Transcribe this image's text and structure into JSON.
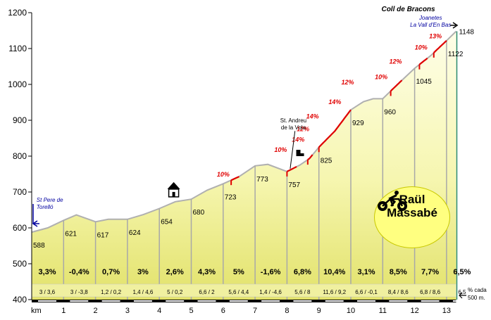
{
  "chart_data": {
    "type": "area",
    "title": "Coll de Bracons",
    "xlabel": "km",
    "ylabel": "",
    "xlim": [
      0,
      13.3
    ],
    "ylim": [
      400,
      1200
    ],
    "x_ticks": [
      "1",
      "2",
      "3",
      "4",
      "5",
      "6",
      "7",
      "8",
      "9",
      "10",
      "11",
      "12",
      "13"
    ],
    "y_ticks": [
      "400",
      "500",
      "600",
      "700",
      "800",
      "900",
      "1000",
      "1100",
      "1200"
    ],
    "profile": [
      {
        "km": 0,
        "alt": 588
      },
      {
        "km": 0.5,
        "alt": 600
      },
      {
        "km": 1,
        "alt": 621
      },
      {
        "km": 1.4,
        "alt": 636
      },
      {
        "km": 2,
        "alt": 617
      },
      {
        "km": 2.4,
        "alt": 624
      },
      {
        "km": 3,
        "alt": 624
      },
      {
        "km": 3.5,
        "alt": 637
      },
      {
        "km": 4,
        "alt": 654
      },
      {
        "km": 4.5,
        "alt": 673
      },
      {
        "km": 5,
        "alt": 680
      },
      {
        "km": 5.5,
        "alt": 705
      },
      {
        "km": 6,
        "alt": 723
      },
      {
        "km": 6.5,
        "alt": 743
      },
      {
        "km": 7,
        "alt": 773
      },
      {
        "km": 7.4,
        "alt": 777
      },
      {
        "km": 8,
        "alt": 757
      },
      {
        "km": 8.4,
        "alt": 775
      },
      {
        "km": 8.7,
        "alt": 793
      },
      {
        "km": 9,
        "alt": 825
      },
      {
        "km": 9.5,
        "alt": 870
      },
      {
        "km": 10,
        "alt": 929
      },
      {
        "km": 10.4,
        "alt": 952
      },
      {
        "km": 10.7,
        "alt": 960
      },
      {
        "km": 11,
        "alt": 960
      },
      {
        "km": 11.5,
        "alt": 1003
      },
      {
        "km": 12,
        "alt": 1045
      },
      {
        "km": 12.5,
        "alt": 1080
      },
      {
        "km": 13,
        "alt": 1122
      },
      {
        "km": 13.3,
        "alt": 1148
      }
    ],
    "point_labels": [
      {
        "km": 0,
        "alt": 588,
        "text": "588"
      },
      {
        "km": 1,
        "alt": 621,
        "text": "621"
      },
      {
        "km": 2,
        "alt": 617,
        "text": "617"
      },
      {
        "km": 3,
        "alt": 624,
        "text": "624"
      },
      {
        "km": 4,
        "alt": 654,
        "text": "654"
      },
      {
        "km": 5,
        "alt": 680,
        "text": "680"
      },
      {
        "km": 6,
        "alt": 723,
        "text": "723"
      },
      {
        "km": 7,
        "alt": 773,
        "text": "773"
      },
      {
        "km": 8,
        "alt": 757,
        "text": "757"
      },
      {
        "km": 9,
        "alt": 825,
        "text": "825"
      },
      {
        "km": 10,
        "alt": 929,
        "text": "929"
      },
      {
        "km": 11,
        "alt": 960,
        "text": "960"
      },
      {
        "km": 12,
        "alt": 1045,
        "text": "1045"
      },
      {
        "km": 13,
        "alt": 1122,
        "text": "1122"
      },
      {
        "km": 13.3,
        "alt": 1148,
        "text": "1148"
      }
    ],
    "segments": [
      {
        "avg": "3,3%",
        "minmax": "3 / 3,6"
      },
      {
        "avg": "-0,4%",
        "minmax": "3 / -3,8"
      },
      {
        "avg": "0,7%",
        "minmax": "1,2 / 0,2"
      },
      {
        "avg": "3%",
        "minmax": "1,4 / 4,6"
      },
      {
        "avg": "2,6%",
        "minmax": "5 / 0,2"
      },
      {
        "avg": "4,3%",
        "minmax": "6,6 / 2"
      },
      {
        "avg": "5%",
        "minmax": "5,6 / 4,4"
      },
      {
        "avg": "-1,6%",
        "minmax": "1,4 / -4,6"
      },
      {
        "avg": "6,8%",
        "minmax": "5,6 / 8"
      },
      {
        "avg": "10,4%",
        "minmax": "11,6 / 9,2"
      },
      {
        "avg": "3,1%",
        "minmax": "6,6 / -0,1"
      },
      {
        "avg": "8,5%",
        "minmax": "8,4 / 8,6"
      },
      {
        "avg": "7,7%",
        "minmax": "6,8 / 8,6"
      },
      {
        "avg": "6,5%",
        "minmax": "6,5"
      }
    ],
    "steep_sections": [
      {
        "from": 6.25,
        "to": 6.5
      },
      {
        "from": 8.0,
        "to": 8.3
      },
      {
        "from": 8.65,
        "to": 8.8
      },
      {
        "from": 9.0,
        "to": 10.0
      },
      {
        "from": 11.25,
        "to": 11.6
      },
      {
        "from": 12.15,
        "to": 12.4
      },
      {
        "from": 12.6,
        "to": 13.0
      }
    ],
    "gradient_labels": [
      {
        "km": 6.2,
        "alt": 743,
        "text": "10%"
      },
      {
        "km": 8.0,
        "alt": 812,
        "text": "10%"
      },
      {
        "km": 8.55,
        "alt": 840,
        "text": "14%"
      },
      {
        "km": 8.7,
        "alt": 870,
        "text": "12%"
      },
      {
        "km": 9.0,
        "alt": 905,
        "text": "14%"
      },
      {
        "km": 9.7,
        "alt": 945,
        "text": "14%"
      },
      {
        "km": 10.1,
        "alt": 1000,
        "text": "12%"
      },
      {
        "km": 11.15,
        "alt": 1015,
        "text": "10%"
      },
      {
        "km": 11.6,
        "alt": 1058,
        "text": "12%"
      },
      {
        "km": 12.4,
        "alt": 1097,
        "text": "10%"
      },
      {
        "km": 12.85,
        "alt": 1128,
        "text": "13%"
      }
    ],
    "place_labels": [
      {
        "km": 0.15,
        "alt": 673,
        "lines": [
          "St Pere de",
          "Torelló"
        ]
      },
      {
        "km": 8.2,
        "alt": 894,
        "lines": [
          "St. Andreu",
          "de la Vola"
        ]
      },
      {
        "km": 12.0,
        "alt": 1180,
        "lines": [
          "Joanetes",
          "La Vall d'En Bas"
        ]
      }
    ],
    "legend_note": [
      "% cada",
      "500 m."
    ],
    "author": [
      "Raül",
      "Massabé"
    ],
    "colors": {
      "fill": "#fafac0",
      "fill_bottom": "#dcdc60",
      "line": "#b0b0b0",
      "steep": "#e00000",
      "band": "#f0f0a0",
      "label_red": "#e00000",
      "place_blue": "#0000a0"
    }
  }
}
